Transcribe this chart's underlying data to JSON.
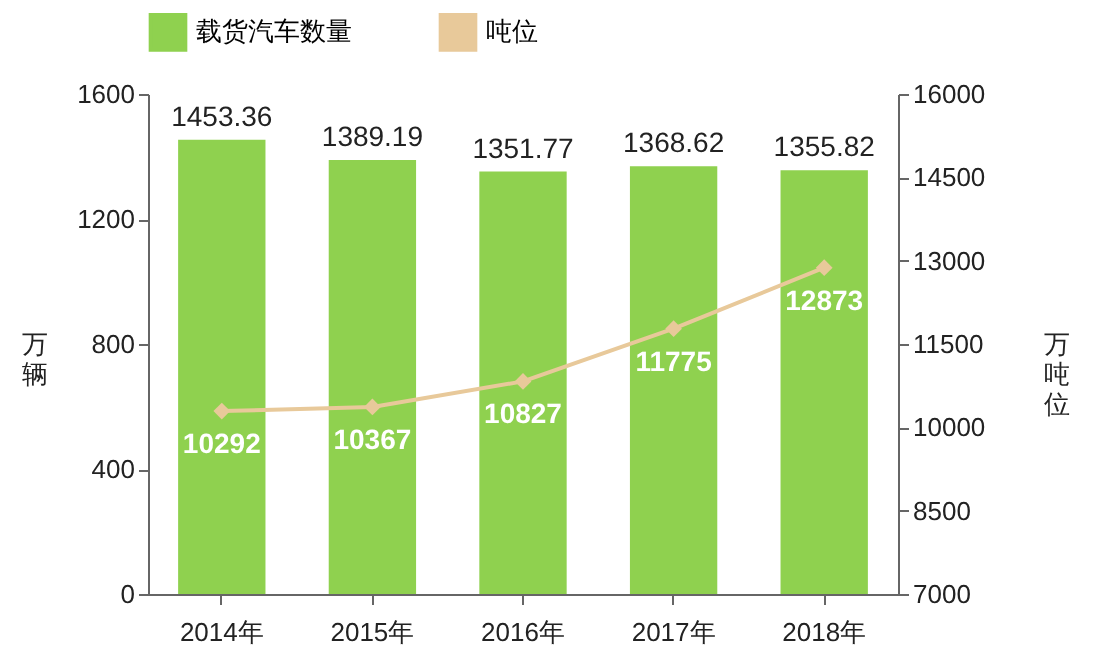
{
  "chart_data": {
    "type": "bar",
    "categories": [
      "2014年",
      "2015年",
      "2016年",
      "2017年",
      "2018年"
    ],
    "series": [
      {
        "name": "载货汽车数量",
        "color": "#8fd14f",
        "values": [
          1453.36,
          1389.19,
          1351.77,
          1368.62,
          1355.82
        ]
      },
      {
        "name": "吨位",
        "type": "line",
        "axis": "y2",
        "color": "#e8c99a",
        "values": [
          10292,
          10367,
          10827,
          11775,
          12873
        ]
      }
    ],
    "ylabel": "万辆",
    "y2label": "万吨位",
    "ylim": [
      0,
      1600
    ],
    "yticks": [
      0,
      400,
      800,
      1200,
      1600
    ],
    "y2lim": [
      7000,
      16000
    ],
    "y2ticks": [
      7000,
      8500,
      10000,
      11500,
      13000,
      14500,
      16000
    ],
    "data_labels": true,
    "legend": "top",
    "marker": "diamond",
    "grid": false
  }
}
